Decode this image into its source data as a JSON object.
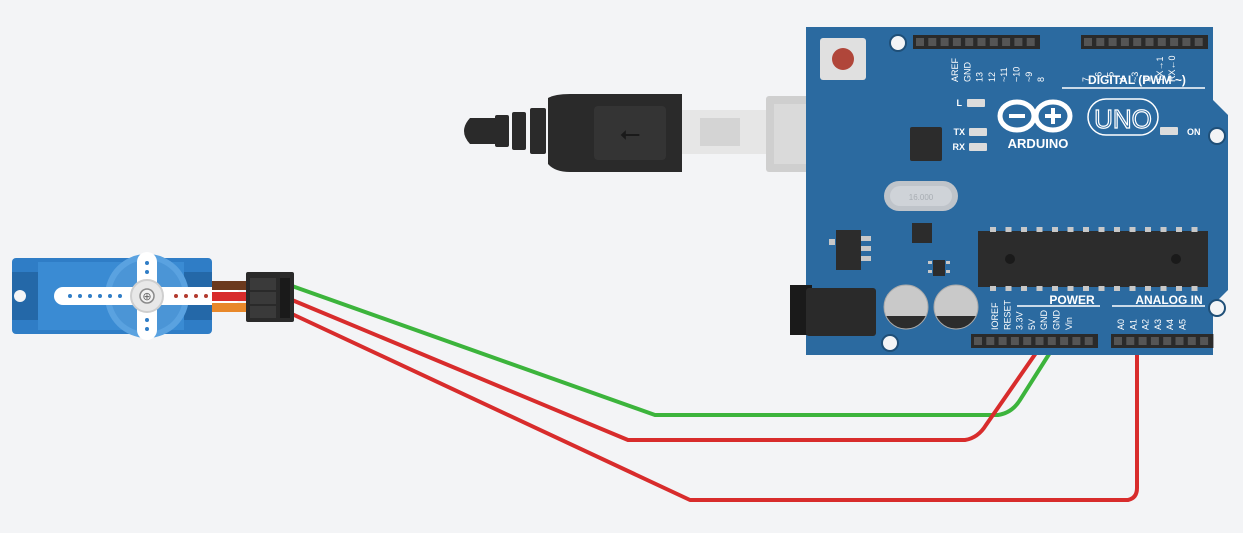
{
  "canvas": {
    "background": "#f3f4f6"
  },
  "colors": {
    "board": "#2b6aa0",
    "board_dark": "#1f4f78",
    "board_outline": "#3c7fb8",
    "header_pin": "#2f2f2f",
    "header_hole": "#5a5a5a",
    "wire_green": "#3cb43c",
    "wire_red": "#d82c2c",
    "servo_blue": "#2f7dc6",
    "servo_dark": "#2468a8",
    "cable_black": "#2a2a2a",
    "usb_grey": "#cfcfcf",
    "reset_red": "#b0463a",
    "chip": "#2c2c2c",
    "capacitor": "#c9c9c9",
    "silk": "#ffffff"
  },
  "arduino": {
    "model": "UNO",
    "brand": "ARDUINO",
    "digital_header_label": "DIGITAL (PWM ~)",
    "power_header_label": "POWER",
    "analog_header_label": "ANALOG IN",
    "digital_pins_left": [
      "AREF",
      "GND",
      "13",
      "12",
      "~11",
      "~10",
      "~9",
      "8"
    ],
    "digital_pins_right": [
      "7",
      "~6",
      "~5",
      "4",
      "~3",
      "2",
      "TX→1",
      "RX←0"
    ],
    "power_pins": [
      "IOREF",
      "RESET",
      "3.3V",
      "5V",
      "GND",
      "GND",
      "Vin"
    ],
    "analog_pins": [
      "A0",
      "A1",
      "A2",
      "A3",
      "A4",
      "A5"
    ],
    "led_labels": {
      "l": "L",
      "tx": "TX",
      "rx": "RX",
      "on": "ON"
    },
    "crystal_label": "16.000"
  },
  "servo": {
    "name": "micro-servo"
  },
  "usb_cable": {
    "name": "usb-cable"
  },
  "wires": [
    {
      "name": "wire-ground",
      "color": "green",
      "from": "servo-connector",
      "to": "GND"
    },
    {
      "name": "wire-power",
      "color": "red",
      "from": "servo-connector",
      "to": "5V"
    },
    {
      "name": "wire-signal",
      "color": "red",
      "from": "servo-connector",
      "to": "A1"
    }
  ]
}
